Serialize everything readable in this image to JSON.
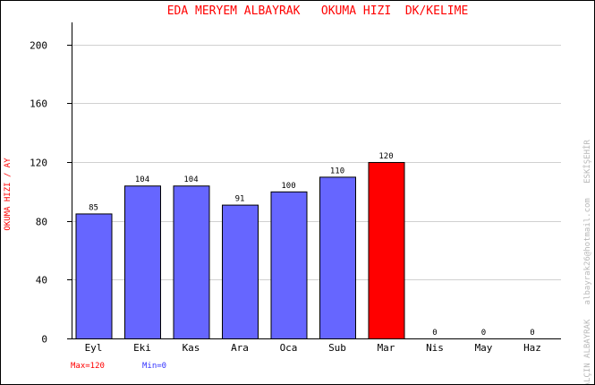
{
  "chart_data": {
    "type": "bar",
    "title": "EDA MERYEM ALBAYRAK   OKUMA HIZI  DK/KELIME",
    "xlabel": "",
    "ylabel": "OKUMA HIZI / AY",
    "categories": [
      "Eyl",
      "Eki",
      "Kas",
      "Ara",
      "Oca",
      "Sub",
      "Mar",
      "Nis",
      "May",
      "Haz"
    ],
    "values": [
      85,
      104,
      104,
      91,
      100,
      110,
      120,
      0,
      0,
      0
    ],
    "value_labels": [
      "85",
      "104",
      "104",
      "91",
      "100",
      "110",
      "120",
      "0",
      "0",
      "0"
    ],
    "ylim": [
      0,
      215
    ],
    "yticks": [
      0,
      40,
      80,
      120,
      160,
      200
    ],
    "grid": true,
    "legend": "none",
    "bar_color": "#6666ff",
    "highlight_color": "#ff0000",
    "highlight_index": 6,
    "max_label": "Max=120",
    "min_label": "Min=0",
    "credit": "YALÇIN ALBAYRAK   albayrak26@hotmail.com   ESKİŞEHİR"
  }
}
